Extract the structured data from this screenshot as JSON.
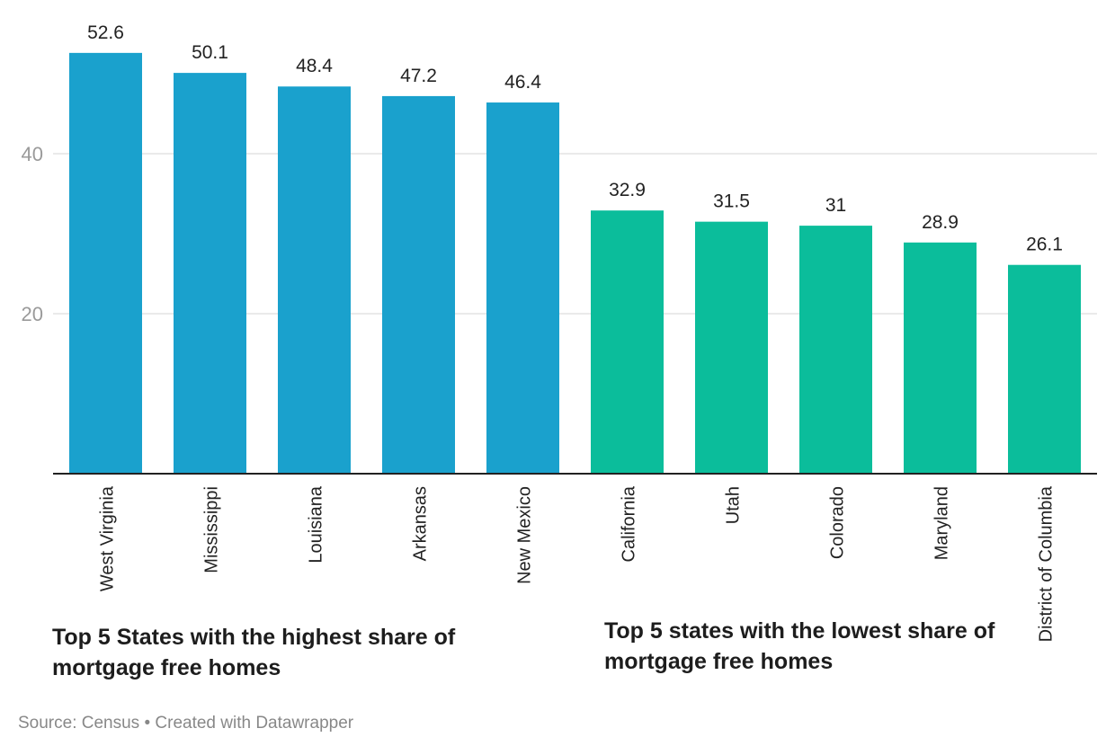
{
  "chart_data": {
    "type": "bar",
    "categories": [
      "West Virginia",
      "Mississippi",
      "Louisiana",
      "Arkansas",
      "New Mexico",
      "California",
      "Utah",
      "Colorado",
      "Maryland",
      "District of Columbia"
    ],
    "values": [
      52.6,
      50.1,
      48.4,
      47.2,
      46.4,
      32.9,
      31.5,
      31,
      28.9,
      26.1
    ],
    "value_labels": [
      "52.6",
      "50.1",
      "48.4",
      "47.2",
      "46.4",
      "32.9",
      "31.5",
      "31",
      "28.9",
      "26.1"
    ],
    "bar_colors": [
      "#1aa1cd",
      "#1aa1cd",
      "#1aa1cd",
      "#1aa1cd",
      "#1aa1cd",
      "#0bbd9b",
      "#0bbd9b",
      "#0bbd9b",
      "#0bbd9b",
      "#0bbd9b"
    ],
    "yticks": [
      20,
      40
    ],
    "ytick_labels": [
      "20",
      "40"
    ],
    "ylim": [
      0,
      59
    ],
    "grid": true,
    "annotations": [
      "Top 5 States with the highest share of mortgage free homes",
      "Top 5 states with the lowest share of mortgage free homes"
    ]
  },
  "source": "Source: Census • Created with Datawrapper"
}
